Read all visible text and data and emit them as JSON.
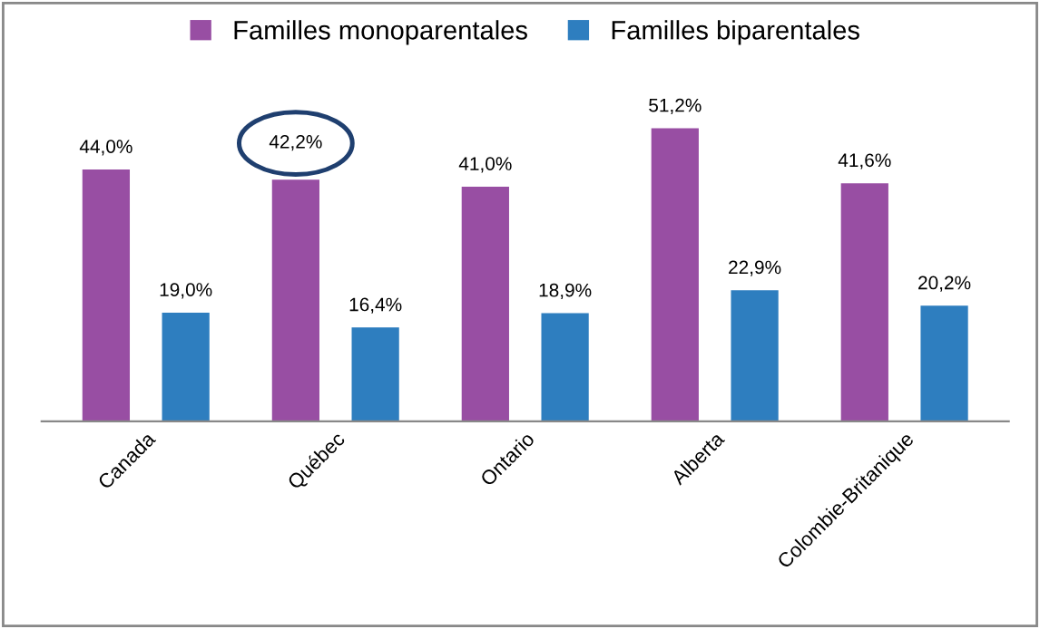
{
  "chart_data": {
    "type": "bar",
    "categories": [
      "Canada",
      "Québec",
      "Ontario",
      "Alberta",
      "Colombie-Britanique"
    ],
    "series": [
      {
        "name": "Familles monoparentales",
        "color": "#984ea3",
        "values": [
          44.0,
          42.2,
          41.0,
          51.2,
          41.6
        ],
        "value_labels": [
          "44,0%",
          null,
          "41,0%",
          "51,2%",
          "41,6%"
        ]
      },
      {
        "name": "Familles biparentales",
        "color": "#2e7ebf",
        "values": [
          19.0,
          16.4,
          18.9,
          22.9,
          20.2
        ],
        "value_labels": [
          "19,0%",
          "16,4%",
          "18,9%",
          "22,9%",
          "20,2%"
        ]
      }
    ],
    "annotations": [
      {
        "text": "42,2%",
        "x": "Québec",
        "y": 42.2
      }
    ],
    "legend": "top",
    "grid": false,
    "tick_labels": "x"
  }
}
